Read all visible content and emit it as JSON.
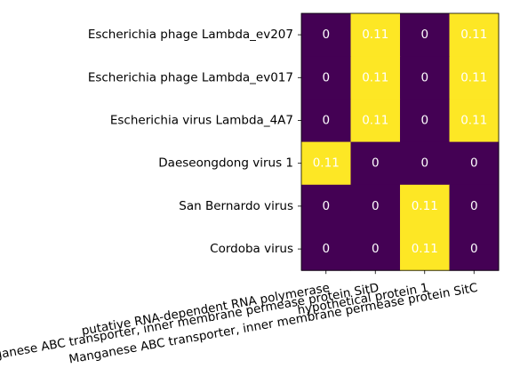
{
  "chart_data": {
    "type": "heatmap",
    "title": "",
    "xlabel": "",
    "ylabel": "",
    "rows": [
      "Escherichia phage Lambda_ev207",
      "Escherichia phage Lambda_ev017",
      "Escherichia virus Lambda_4A7",
      "Daeseongdong virus 1",
      "San Bernardo virus",
      "Cordoba virus"
    ],
    "columns": [
      "putative RNA-dependent RNA polymerase",
      "Manganese ABC transporter, inner membrane permease protein SitD",
      "hypothetical protein 1",
      "Manganese ABC transporter, inner membrane permease protein SitC"
    ],
    "values": [
      [
        0,
        0.11,
        0,
        0.11
      ],
      [
        0,
        0.11,
        0,
        0.11
      ],
      [
        0,
        0.11,
        0,
        0.11
      ],
      [
        0.11,
        0,
        0,
        0
      ],
      [
        0,
        0,
        0.11,
        0
      ],
      [
        0,
        0,
        0.11,
        0
      ]
    ],
    "cell_labels": [
      [
        "0",
        "0.11",
        "0",
        "0.11"
      ],
      [
        "0",
        "0.11",
        "0",
        "0.11"
      ],
      [
        "0",
        "0.11",
        "0",
        "0.11"
      ],
      [
        "0.11",
        "0",
        "0",
        "0"
      ],
      [
        "0",
        "0",
        "0.11",
        "0"
      ],
      [
        "0",
        "0",
        "0.11",
        "0"
      ]
    ],
    "colormap": "viridis",
    "colors": {
      "low": "#440154",
      "high": "#fde725"
    },
    "value_range": [
      0,
      0.11
    ],
    "grid": false,
    "legend": "none"
  }
}
